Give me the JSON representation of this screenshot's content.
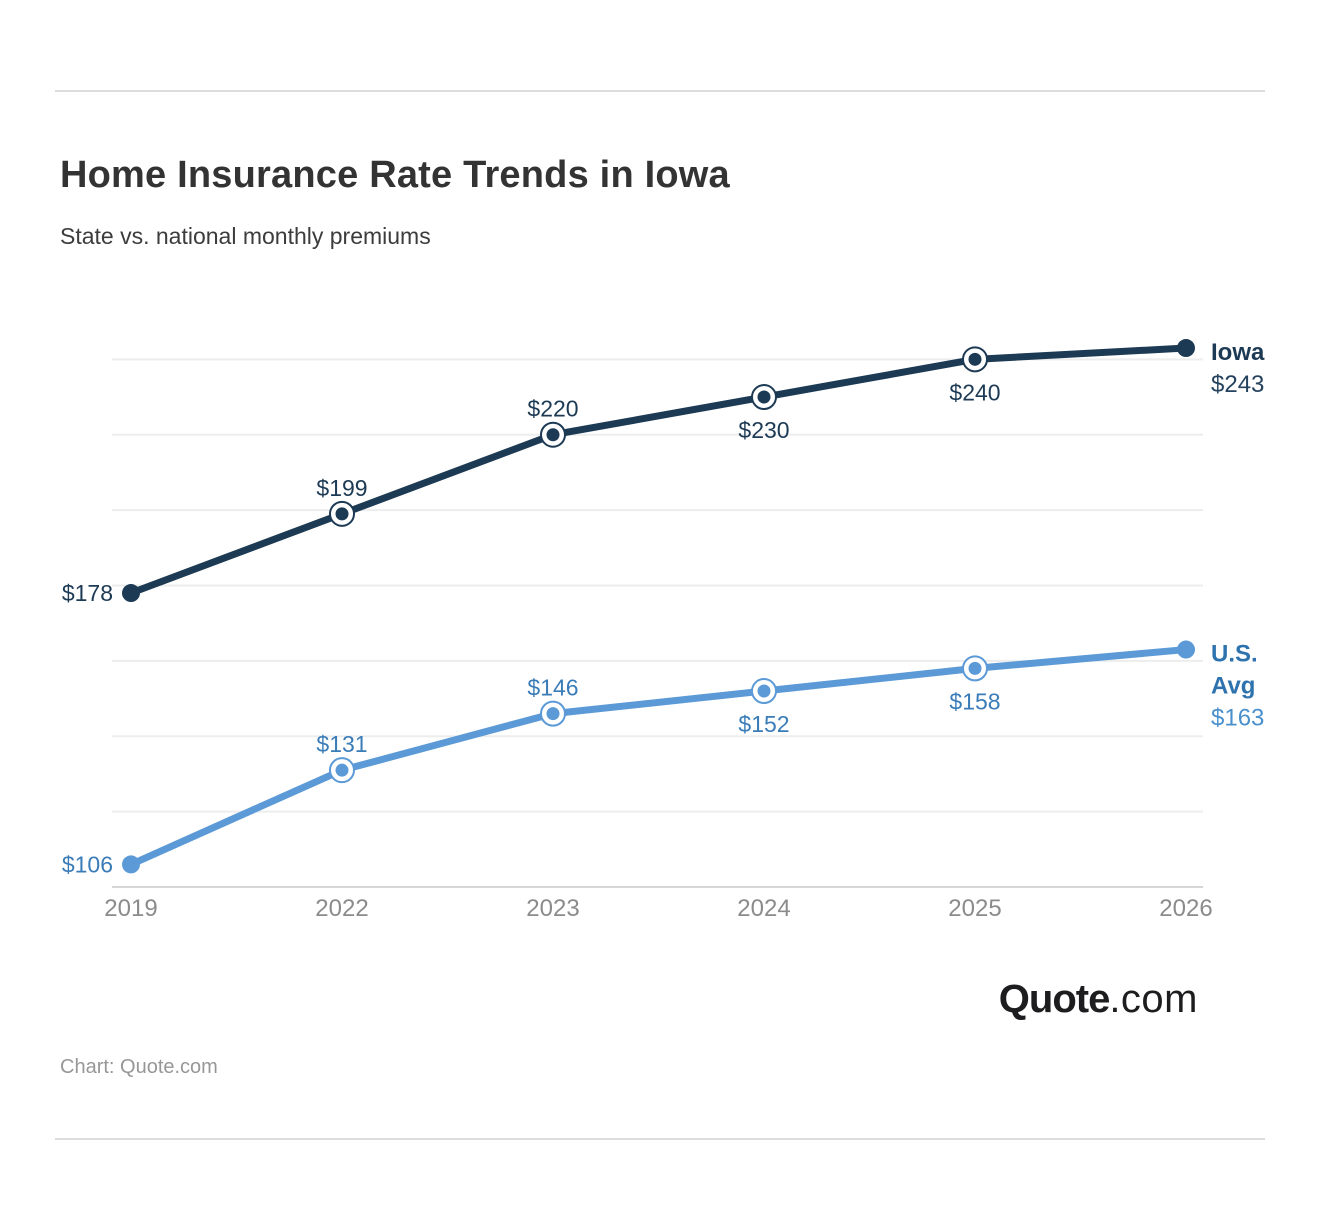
{
  "header": {
    "title": "Home Insurance Rate Trends in Iowa",
    "subtitle": "State vs. national monthly premiums"
  },
  "footer": {
    "logo_bold": "Quote",
    "logo_light": ".com",
    "source": "Chart: Quote.com"
  },
  "chart_data": {
    "type": "line",
    "title": "Home Insurance Rate Trends in Iowa",
    "subtitle": "State vs. national monthly premiums",
    "x": [
      "2019",
      "2022",
      "2023",
      "2024",
      "2025",
      "2026"
    ],
    "ylim": [
      100,
      252
    ],
    "grid_values": [
      120,
      140,
      160,
      180,
      200,
      220,
      240
    ],
    "grid_on": true,
    "y_tick_labels_shown": false,
    "legend_position": "end-of-line-labels",
    "grid_color": "#ededed",
    "axis_color": "#d6d6d6",
    "x_tick_color": "#8b8b8b",
    "series": [
      {
        "name": "Iowa",
        "values": [
          178,
          199,
          220,
          230,
          240,
          243
        ],
        "color": "#1d3a54",
        "point_label_color": "#1d3a54",
        "point_labels": [
          {
            "text": "$178",
            "pos": "left"
          },
          {
            "text": "$199",
            "pos": "above"
          },
          {
            "text": "$220",
            "pos": "above"
          },
          {
            "text": "$230",
            "pos": "below"
          },
          {
            "text": "$240",
            "pos": "below"
          },
          {
            "text": "",
            "pos": "none"
          }
        ],
        "end_label": {
          "name_lines": [
            "Iowa"
          ],
          "value": "$243",
          "name_color": "#1d3a54",
          "value_color": "#24425e"
        }
      },
      {
        "name": "U.S. Avg",
        "values": [
          106,
          131,
          146,
          152,
          158,
          163
        ],
        "color": "#5b9ad6",
        "point_label_color": "#3a7cb8",
        "point_labels": [
          {
            "text": "$106",
            "pos": "left"
          },
          {
            "text": "$131",
            "pos": "above"
          },
          {
            "text": "$146",
            "pos": "above"
          },
          {
            "text": "$152",
            "pos": "below"
          },
          {
            "text": "$158",
            "pos": "below"
          },
          {
            "text": "",
            "pos": "none"
          }
        ],
        "end_label": {
          "name_lines": [
            "U.S.",
            "Avg"
          ],
          "value": "$163",
          "name_color": "#2f73ae",
          "value_color": "#4a90cc"
        }
      }
    ]
  }
}
